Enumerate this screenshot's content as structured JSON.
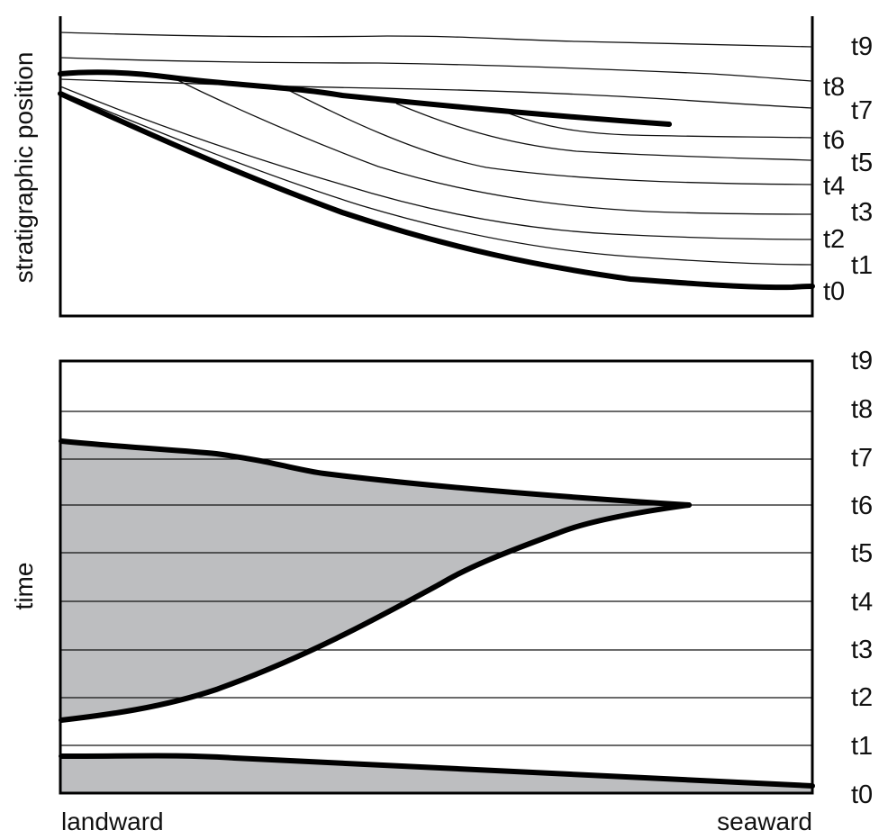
{
  "top_panel": {
    "y_axis_label": "stratigraphic position",
    "right_labels": [
      "t9",
      "t8",
      "t7",
      "t6",
      "t5",
      "t4",
      "t3",
      "t2",
      "t1",
      "t0"
    ]
  },
  "bottom_panel": {
    "y_axis_label": "time",
    "right_labels": [
      "t9",
      "t8",
      "t7",
      "t6",
      "t5",
      "t4",
      "t3",
      "t2",
      "t1",
      "t0"
    ]
  },
  "x_axis": {
    "left_label": "landward",
    "right_label": "seaward"
  },
  "colors": {
    "fill": "#bdbec0",
    "line": "#000000"
  }
}
